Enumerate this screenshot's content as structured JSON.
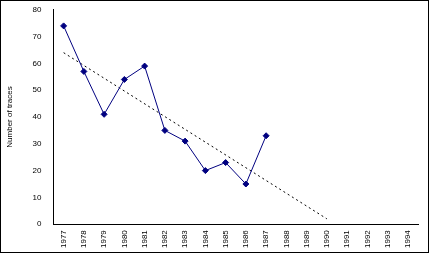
{
  "chart_data": {
    "type": "line",
    "y_label": "Number of traces",
    "categories": [
      "1977",
      "1978",
      "1979",
      "1980",
      "1981",
      "1982",
      "1983",
      "1984",
      "1985",
      "1986",
      "1987",
      "1988",
      "1989",
      "1990",
      "1991",
      "1992",
      "1993",
      "1994"
    ],
    "series": [
      {
        "color": "#000080",
        "marker": "diamond",
        "line_style": "solid",
        "values": [
          74,
          57,
          41,
          54,
          59,
          35,
          31,
          20,
          23,
          15,
          33,
          null,
          null,
          null,
          null,
          null,
          null,
          null
        ]
      },
      {
        "color": "#000000",
        "marker": "none",
        "line_style": "dotted",
        "values": [
          64,
          null,
          null,
          null,
          null,
          null,
          null,
          null,
          null,
          null,
          null,
          null,
          null,
          2,
          null,
          null,
          null,
          null
        ]
      }
    ],
    "ylim": [
      0,
      80
    ],
    "yticks": [
      0,
      10,
      20,
      30,
      40,
      50,
      60,
      70,
      80
    ],
    "grid": false
  }
}
